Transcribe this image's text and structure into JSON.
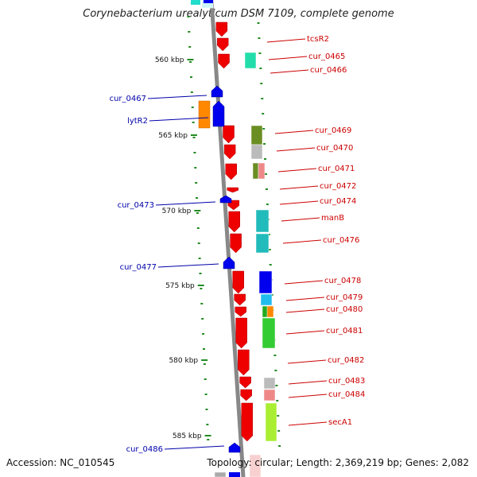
{
  "header": {
    "title": "Corynebacterium urealyticum DSM 7109, complete genome"
  },
  "footer": {
    "accession": "Accession: NC_010545",
    "topology": "Topology: circular; Length: 2,369,219 bp; Genes: 2,082"
  },
  "scale": {
    "marks": [
      {
        "label": "560 kbp",
        "kbp": 560
      },
      {
        "label": "565 kbp",
        "kbp": 565
      },
      {
        "label": "570 kbp",
        "kbp": 570
      },
      {
        "label": "575 kbp",
        "kbp": 575
      },
      {
        "label": "580 kbp",
        "kbp": 580
      },
      {
        "label": "585 kbp",
        "kbp": 585
      }
    ]
  },
  "genes_right": [
    {
      "name": "tcsR2"
    },
    {
      "name": "cur_0465"
    },
    {
      "name": "cur_0466"
    },
    {
      "name": "cur_0469"
    },
    {
      "name": "cur_0470"
    },
    {
      "name": "cur_0471"
    },
    {
      "name": "cur_0472"
    },
    {
      "name": "cur_0474"
    },
    {
      "name": "manB"
    },
    {
      "name": "cur_0476"
    },
    {
      "name": "cur_0478"
    },
    {
      "name": "cur_0479"
    },
    {
      "name": "cur_0480"
    },
    {
      "name": "cur_0481"
    },
    {
      "name": "cur_0482"
    },
    {
      "name": "cur_0483"
    },
    {
      "name": "cur_0484"
    },
    {
      "name": "secA1"
    }
  ],
  "genes_left": [
    {
      "name": "cur_0467"
    },
    {
      "name": "lytR2"
    },
    {
      "name": "cur_0473"
    },
    {
      "name": "cur_0477"
    },
    {
      "name": "cur_0486"
    }
  ],
  "colors": {
    "forward_gene": "#ee0000",
    "reverse_gene": "#0000ee",
    "label_forward": "#cc0000",
    "label_reverse": "#0000aa",
    "backbone": "#888888",
    "tick": "#228b22"
  }
}
